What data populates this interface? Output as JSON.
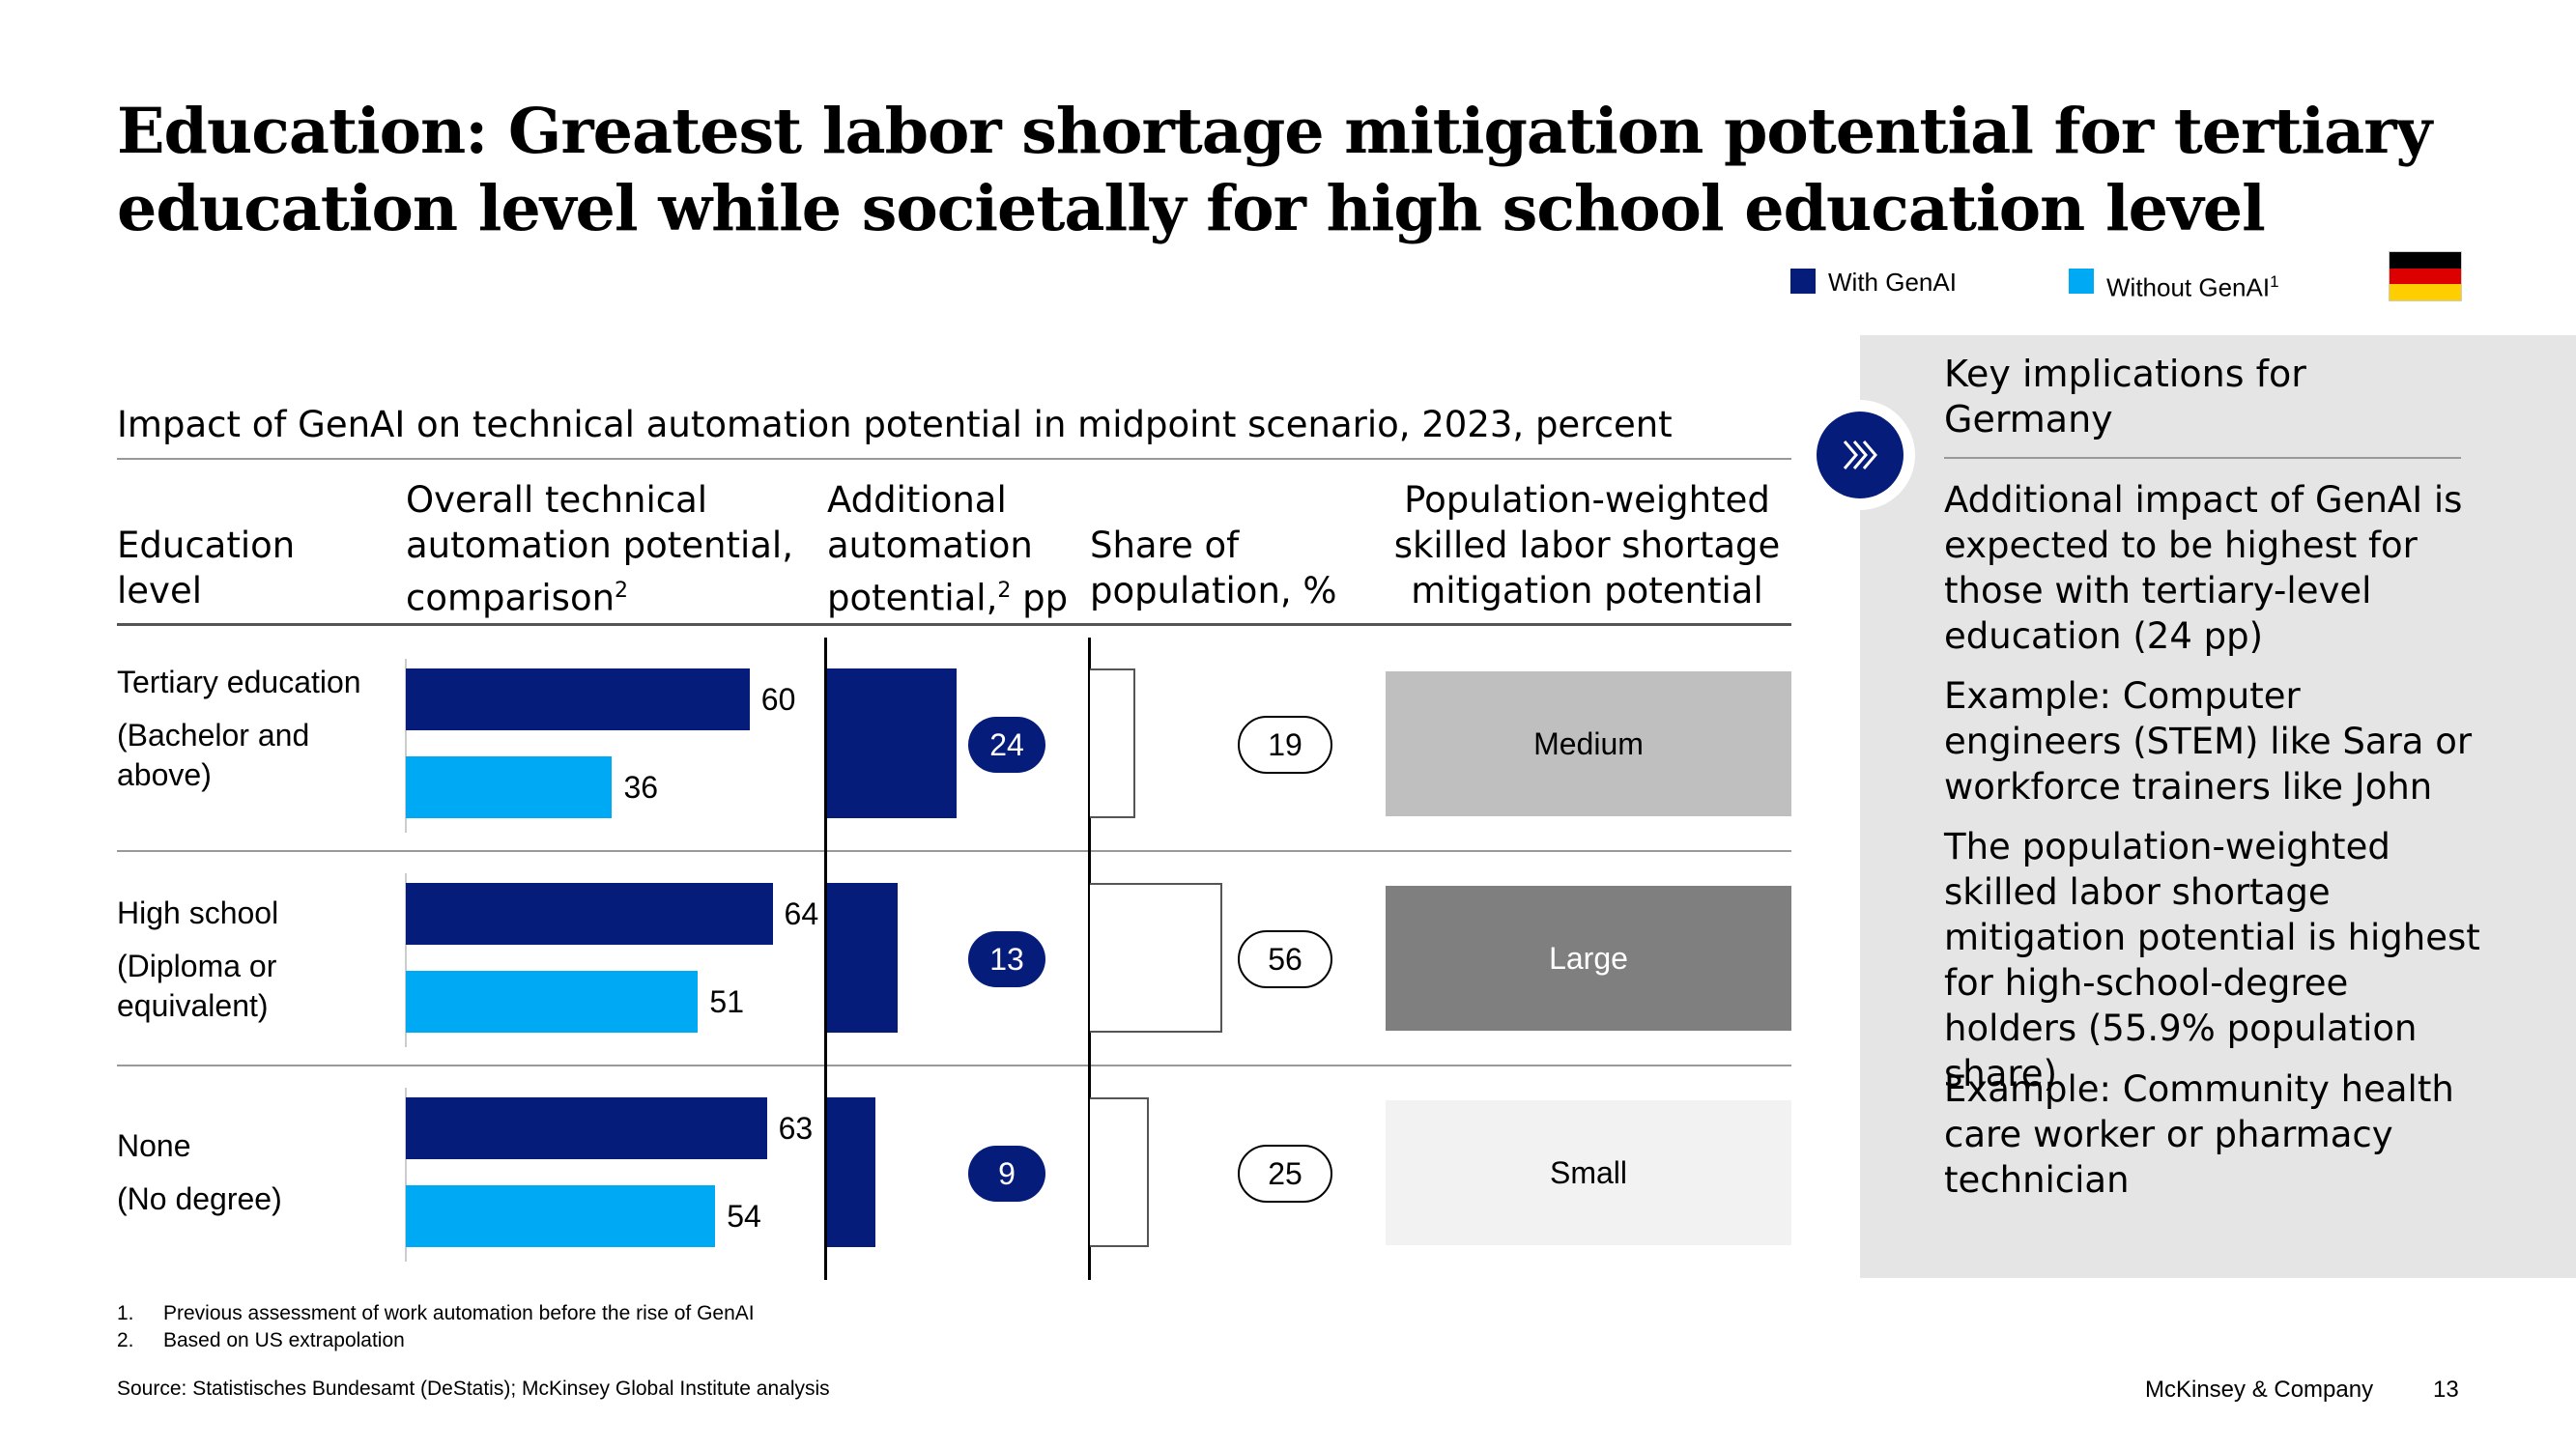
{
  "title": "Education: Greatest labor shortage mitigation potential for tertiary education level while societally for high school education level",
  "legend": {
    "with_genai": "With GenAI",
    "without_genai": "Without GenAI",
    "without_genai_sup": "1",
    "flag_icon": "germany-flag-icon"
  },
  "colors": {
    "with_genai": "#051C7B",
    "without_genai": "#00A9F4",
    "medium": "#BFBFBF",
    "large": "#7F7F7F",
    "small": "#F2F2F2",
    "side_panel": "#E5E5E5"
  },
  "subtitle": "Impact of GenAI on technical automation potential in midpoint scenario, 2023, percent",
  "columns": {
    "education_level": "Education level",
    "overall": "Overall technical automation potential, comparison",
    "overall_sup": "2",
    "additional_line1": "Additional",
    "additional_line2": "automation",
    "additional_line3": "potential,",
    "additional_sup": "2",
    "additional_unit": " pp",
    "share": "Share of population, %",
    "mitigation": "Population-weighted skilled labor shortage mitigation potential"
  },
  "rows": [
    {
      "label": "Tertiary education",
      "sublabel": "(Bachelor and above)"
    },
    {
      "label": "High school",
      "sublabel": "(Diploma or equivalent)"
    },
    {
      "label": "None",
      "sublabel": "(No degree)"
    }
  ],
  "chart_data": {
    "type": "bar",
    "categories": [
      "Tertiary education",
      "High school",
      "None"
    ],
    "series": [
      {
        "name": "With GenAI",
        "values": [
          60,
          64,
          63
        ]
      },
      {
        "name": "Without GenAI",
        "values": [
          36,
          51,
          54
        ]
      }
    ],
    "additional_pp": [
      24,
      13,
      9
    ],
    "share_of_population": [
      19,
      56,
      25
    ],
    "mitigation_potential": [
      "Medium",
      "Large",
      "Small"
    ],
    "xlim": [
      0,
      100
    ]
  },
  "side": {
    "icon": "chevron-double-right-icon",
    "heading": "Key implications for Germany",
    "paragraphs": [
      "Additional impact of GenAI is expected to be highest for those with tertiary-level education (24 pp)",
      "Example: Computer engineers (STEM) like Sara or workforce trainers like John",
      "The population-weighted skilled labor shortage mitigation potential is highest for high-school-degree holders (55.9% population share)",
      "Example: Community health care worker or pharmacy technician"
    ]
  },
  "footnotes": [
    {
      "num": "1.",
      "text": "Previous assessment of work automation before the rise of GenAI"
    },
    {
      "num": "2.",
      "text": "Based on US extrapolation"
    }
  ],
  "source": "Source: Statistisches Bundesamt (DeStatis); McKinsey Global Institute analysis",
  "brand": "McKinsey & Company",
  "page_number": "13"
}
